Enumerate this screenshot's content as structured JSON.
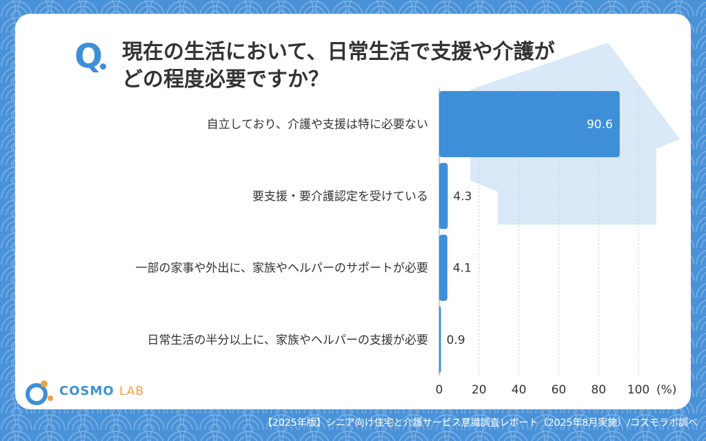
{
  "question": {
    "mark": "Q",
    "line1": "現在の生活において、日常生活で支援や介護が",
    "line2": "どの程度必要ですか？"
  },
  "chart_data": {
    "type": "bar",
    "orientation": "horizontal",
    "categories": [
      "自立しており、介護や支援は特に必要ない",
      "要支援・要介護認定を受けている",
      "一部の家事や外出に、家族やヘルパーのサポートが必要",
      "日常生活の半分以上に、家族やヘルパーの支援が必要"
    ],
    "values": [
      90.6,
      4.3,
      4.1,
      0.9
    ],
    "value_labels": [
      "90.6",
      "4.3",
      "4.1",
      "0.9"
    ],
    "xticks": [
      "0",
      "20",
      "40",
      "60",
      "80",
      "100"
    ],
    "xunit": "(%)",
    "xlim": [
      0,
      100
    ],
    "grid": "vertical dotted",
    "bar_color": "#3d8fd8"
  },
  "logo": {
    "name": "COSMO",
    "suffix": "LAB"
  },
  "footer": "【2025年版】シニア向け住宅と介護サービス意識調査レポート（2025年8月実施）/コスモラボ調べ",
  "colors": {
    "background": "#4a92d8",
    "accent": "#3d8fd8",
    "house": "#d9e9f8"
  }
}
